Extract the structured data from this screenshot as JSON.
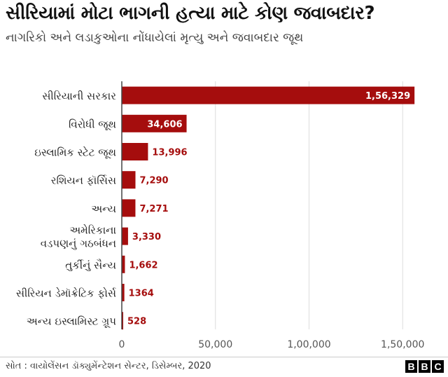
{
  "header": {
    "title": "સીરિયામાં મોટા ભાગની હત્યા માટે કોણ જવાબદાર?",
    "subtitle": "નાગરિકો અને લડાકુઓના નોંધાયેલાં મૃત્યુ અને જવાબદાર જૂથ"
  },
  "chart_data": {
    "type": "bar",
    "orientation": "horizontal",
    "categories": [
      "સીરિયાની સરકાર",
      "વિરોધી જૂથ",
      "ઇસ્લામિક સ્ટેટ જૂથ",
      "રશિયન ફૉર્સિસ",
      "અન્ય",
      "અમેરિકાના વડપણનું ગઠબંધન",
      "તુર્કીનું સૈન્ય",
      "સીરિયન ડેમૉક્રેટિક ફોર્સ",
      "અન્ય ઇસ્લામિસ્ટ ગ્રૂપ"
    ],
    "category_lines": [
      [
        "સીરિયાની સરકાર"
      ],
      [
        "વિરોધી જૂથ"
      ],
      [
        "ઇસ્લામિક સ્ટેટ જૂથ"
      ],
      [
        "રશિયન ફૉર્સિસ"
      ],
      [
        "અન્ય"
      ],
      [
        "અમેરિકાના",
        "વડપણનું ગઠબંધન"
      ],
      [
        "તુર્કીનું સૈન્ય"
      ],
      [
        "સીરિયન ડેમૉક્રેટિક ફોર્સ"
      ],
      [
        "અન્ય ઇસ્લામિસ્ટ ગ્રૂપ"
      ]
    ],
    "values": [
      156329,
      34606,
      13996,
      7290,
      7271,
      3330,
      1662,
      1364,
      528
    ],
    "value_labels": [
      "1,56,329",
      "34,606",
      "13,996",
      "7,290",
      "7,271",
      "3,330",
      "1,662",
      "1364",
      "528"
    ],
    "x_ticks": [
      0,
      50000,
      100000,
      150000
    ],
    "x_tick_labels": [
      "0",
      "50,000",
      "1,00,000",
      "1,50,000"
    ],
    "xlim": [
      0,
      163000
    ],
    "grid": true,
    "colors": {
      "bar": "#a50d0d",
      "label_outside": "#a50d0d",
      "label_inside": "#ffffff",
      "grid": "#dddddd",
      "axis": "#444444"
    }
  },
  "footer": {
    "source": "સોત : વાયોલેંસન ડૉક્યુમેંન્ટેશન સેન્ટર, ડિસેમ્બર, 2020",
    "logo_letters": [
      "B",
      "B",
      "C"
    ]
  }
}
